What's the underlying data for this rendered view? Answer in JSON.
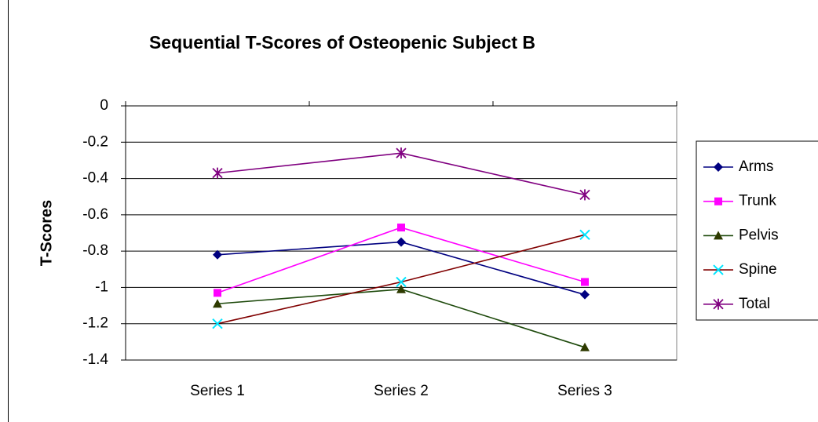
{
  "chart_data": {
    "type": "line",
    "title": "Sequential T-Scores of Osteopenic Subject B",
    "y_label": "T-Scores",
    "categories": [
      "Series 1",
      "Series 2",
      "Series 3"
    ],
    "ylim": [
      -1.4,
      0
    ],
    "yticks": [
      0,
      -0.2,
      -0.4,
      -0.6,
      -0.8,
      -1,
      -1.2,
      -1.4
    ],
    "grid": true,
    "legend": "right",
    "series": [
      {
        "name": "Arms",
        "color": "#000080",
        "marker_color": "#000080",
        "marker": "diamond",
        "values": [
          -0.82,
          -0.75,
          -1.04
        ]
      },
      {
        "name": "Trunk",
        "color": "#ff00ff",
        "marker_color": "#ff00ff",
        "marker": "square",
        "values": [
          -1.03,
          -0.67,
          -0.97
        ]
      },
      {
        "name": "Pelvis",
        "color": "#1e4a0c",
        "marker_color": "#2e3a00",
        "marker": "triangle",
        "values": [
          -1.09,
          -1.01,
          -1.33
        ]
      },
      {
        "name": "Spine",
        "color": "#800000",
        "marker_color": "#00e5ff",
        "marker": "x",
        "values": [
          -1.2,
          -0.97,
          -0.71
        ]
      },
      {
        "name": "Total",
        "color": "#800080",
        "marker_color": "#800080",
        "marker": "star",
        "values": [
          -0.37,
          -0.26,
          -0.49
        ]
      }
    ]
  }
}
